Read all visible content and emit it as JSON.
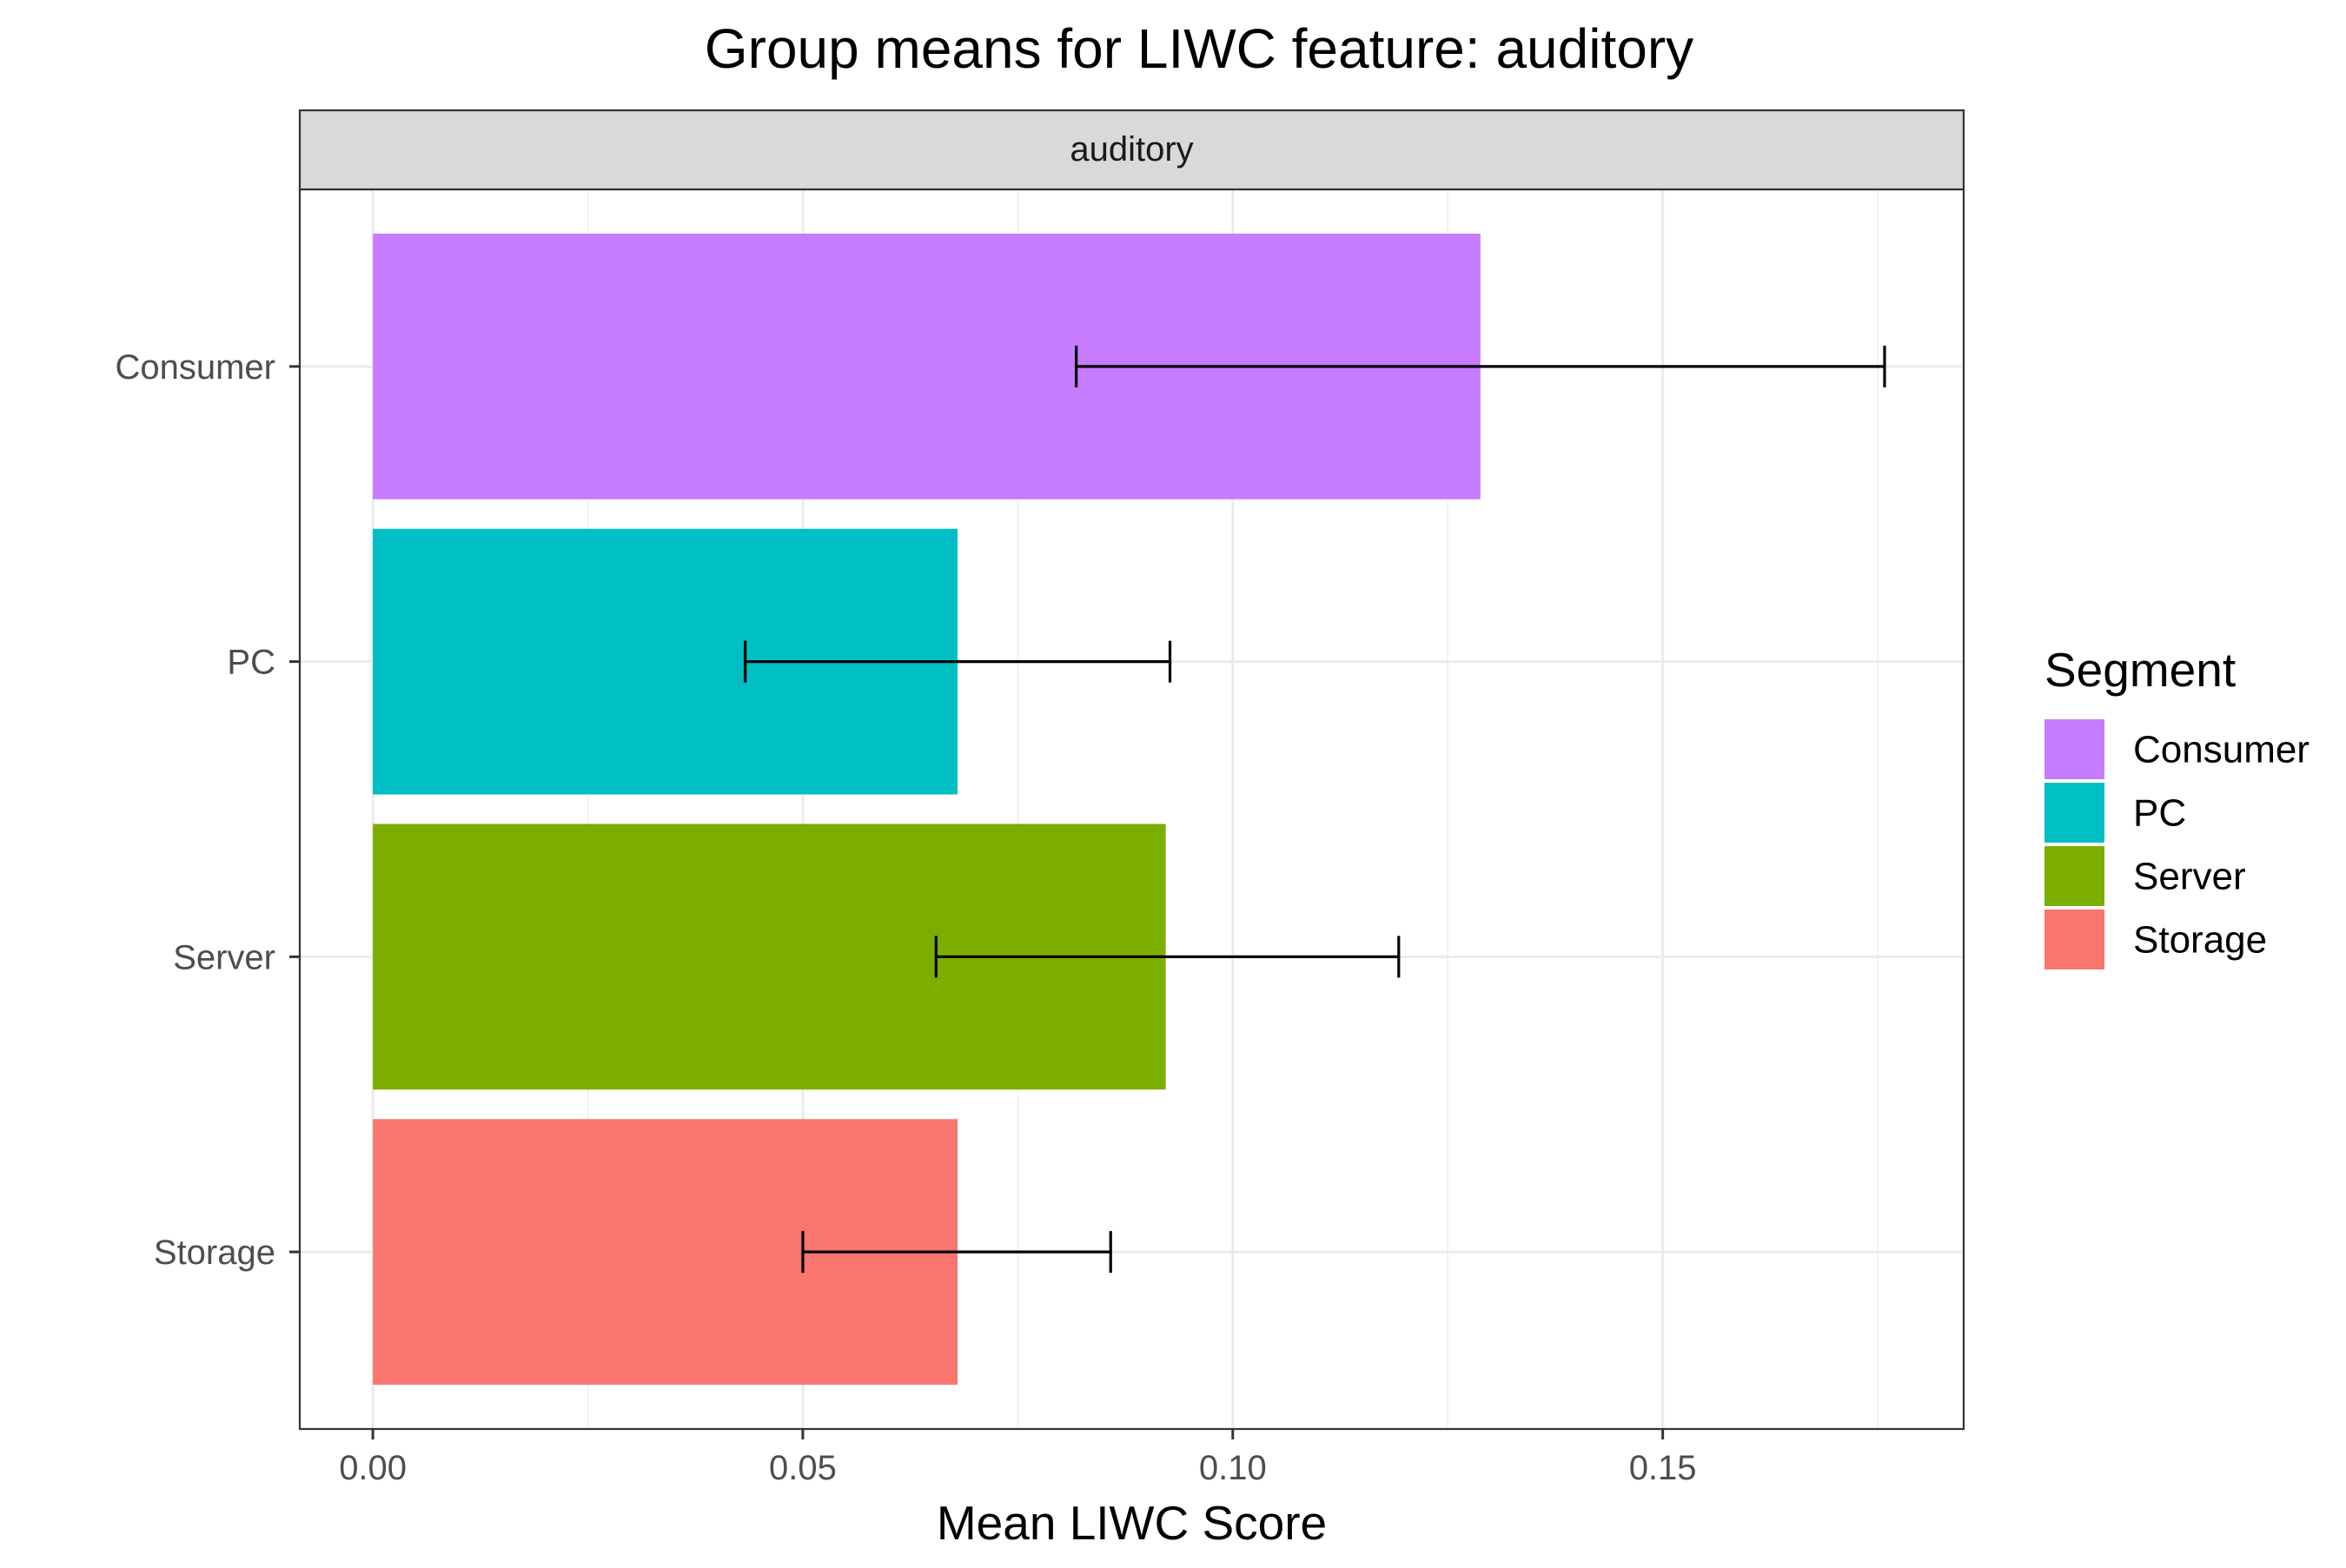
{
  "chart_data": {
    "type": "bar",
    "orientation": "horizontal",
    "title": "Group means for LIWC feature: auditory",
    "facet_label": "auditory",
    "xlabel": "Mean LIWC Score",
    "ylabel": "",
    "xlim": [
      -0.0085,
      0.185
    ],
    "x_ticks": [
      0.0,
      0.05,
      0.1,
      0.15
    ],
    "x_tick_labels": [
      "0.00",
      "0.05",
      "0.10",
      "0.15"
    ],
    "x_minor_ticks": [
      0.025,
      0.075,
      0.125,
      0.175
    ],
    "categories": [
      "Consumer",
      "PC",
      "Server",
      "Storage"
    ],
    "values": [
      0.1288,
      0.068,
      0.0922,
      0.068
    ],
    "error_low": [
      0.0818,
      0.0433,
      0.0655,
      0.05
    ],
    "error_high": [
      0.1758,
      0.0927,
      0.1193,
      0.0858
    ],
    "colors": [
      "#C77CFF",
      "#00BFC4",
      "#7CAE00",
      "#F8766D"
    ],
    "grid": true,
    "legend": {
      "title": "Segment",
      "position": "right",
      "entries": [
        "Consumer",
        "PC",
        "Server",
        "Storage"
      ]
    }
  }
}
